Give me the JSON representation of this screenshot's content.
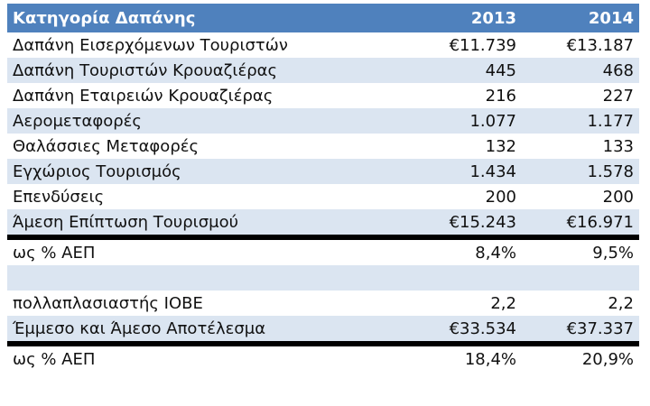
{
  "table": {
    "header": [
      "Κατηγορία Δαπάνης",
      "2013",
      "2014"
    ],
    "rows": [
      [
        "Δαπάνη Εισερχόμενων Τουριστών",
        "€11.739",
        "€13.187"
      ],
      [
        "Δαπάνη Τουριστών Κρουαζιέρας",
        "445",
        "468"
      ],
      [
        "Δαπάνη Εταιρειών Κρουαζιέρας",
        "216",
        "227"
      ],
      [
        "Αερομεταφορές",
        "1.077",
        "1.177"
      ],
      [
        "Θαλάσσιες Μεταφορές",
        "132",
        "133"
      ],
      [
        "Εγχώριος Τουρισμός",
        "1.434",
        "1.578"
      ],
      [
        "Επενδύσεις",
        "200",
        "200"
      ],
      [
        "Άμεση Επίπτωση Τουρισμού",
        "€15.243",
        "€16.971"
      ],
      [
        "ως % ΑΕΠ",
        "8,4%",
        "9,5%"
      ],
      [
        "πολλαπλασιαστής ΙΟΒΕ",
        "2,2",
        "2,2"
      ],
      [
        "Έμμεσο και Άμεσο Αποτέλεσμα",
        "€33.534",
        "€37.337"
      ],
      [
        "ως % ΑΕΠ",
        "18,4%",
        "20,9%"
      ]
    ]
  }
}
